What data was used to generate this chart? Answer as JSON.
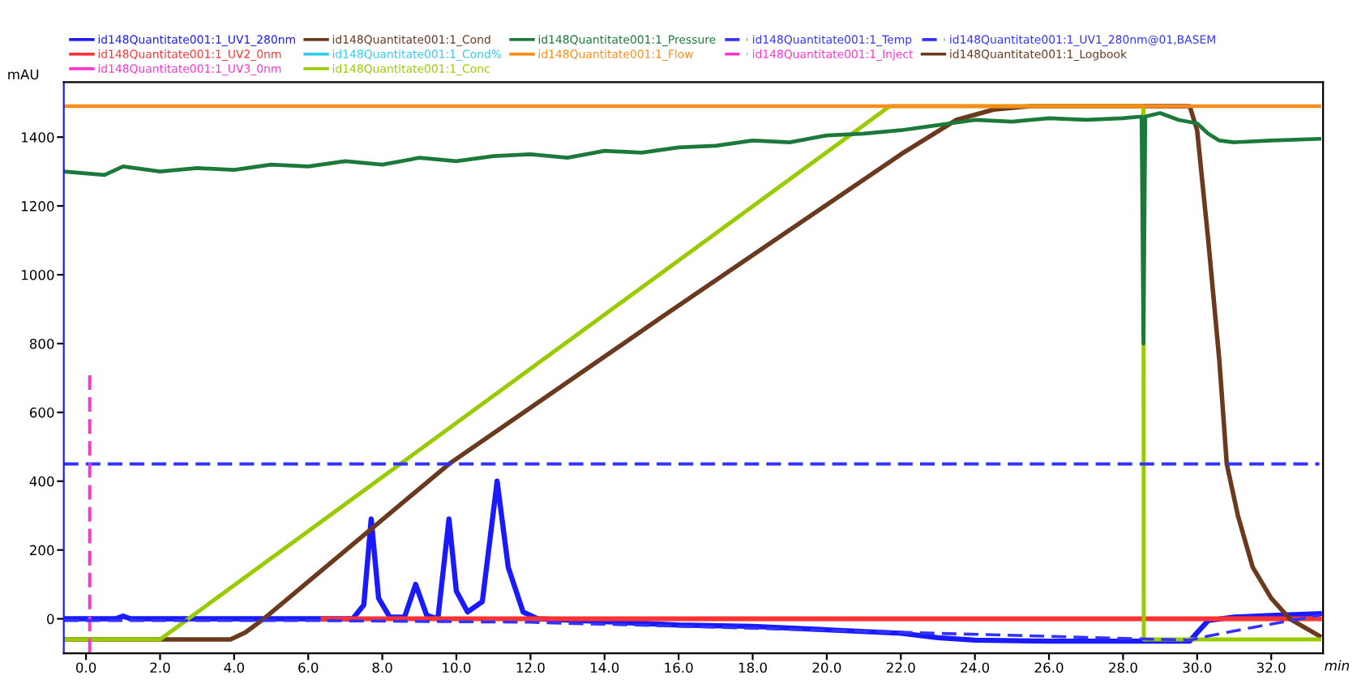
{
  "chart_data": {
    "type": "line",
    "xlabel": "min",
    "ylabel": "mAU",
    "xlim": [
      -0.6,
      33.4
    ],
    "ylim": [
      -100,
      1560
    ],
    "xticks": [
      {
        "value": 0,
        "label": "0.0"
      },
      {
        "value": 2,
        "label": "2.0"
      },
      {
        "value": 4,
        "label": "4.0"
      },
      {
        "value": 6,
        "label": "6.0"
      },
      {
        "value": 8,
        "label": "8.0"
      },
      {
        "value": 10,
        "label": "10.0"
      },
      {
        "value": 12,
        "label": "12.0"
      },
      {
        "value": 14,
        "label": "14.0"
      },
      {
        "value": 16,
        "label": "16.0"
      },
      {
        "value": 18,
        "label": "18.0"
      },
      {
        "value": 20,
        "label": "20.0"
      },
      {
        "value": 22,
        "label": "22.0"
      },
      {
        "value": 24,
        "label": "24.0"
      },
      {
        "value": 26,
        "label": "26.0"
      },
      {
        "value": 28,
        "label": "28.0"
      },
      {
        "value": 30,
        "label": "30.0"
      },
      {
        "value": 32,
        "label": "32.0"
      }
    ],
    "yticks": [
      0,
      200,
      400,
      600,
      800,
      1000,
      1200,
      1400
    ],
    "grid": false,
    "legend": "top",
    "marker": "none",
    "series": [
      {
        "name": "id148Quantitate001:1_UV1_280nm",
        "color": "#1a1aff",
        "line_style": "solid",
        "x": [
          -0.6,
          0.8,
          1.0,
          1.2,
          7.2,
          7.5,
          7.7,
          7.9,
          8.2,
          8.6,
          8.9,
          9.2,
          9.5,
          9.8,
          10.0,
          10.3,
          10.7,
          11.1,
          11.4,
          11.8,
          12.2,
          14,
          16,
          18,
          20,
          22,
          23,
          24,
          26,
          28,
          29.8,
          30.0,
          30.3,
          31.0,
          32.0,
          33.3
        ],
        "values": [
          0,
          0,
          8,
          0,
          0,
          40,
          290,
          60,
          5,
          5,
          100,
          10,
          0,
          290,
          80,
          20,
          50,
          400,
          150,
          20,
          0,
          -8,
          -18,
          -22,
          -32,
          -42,
          -55,
          -62,
          -65,
          -65,
          -65,
          -40,
          -5,
          5,
          10,
          15
        ]
      },
      {
        "name": "id148Quantitate001:1_UV2_0nm",
        "color": "#ff3333",
        "line_style": "solid",
        "x": [
          6.4,
          33.3
        ],
        "values": [
          0,
          0
        ]
      },
      {
        "name": "id148Quantitate001:1_UV3_0nm",
        "color": "#ff33cc",
        "line_style": "solid"
      },
      {
        "name": "id148Quantitate001:1_Cond",
        "color": "#6b3a1e",
        "line_style": "solid",
        "x": [
          -0.6,
          3.9,
          4.3,
          4.8,
          9.8,
          15.6,
          22.0,
          23.5,
          24.5,
          25.5,
          29.8,
          30.0,
          30.3,
          30.6,
          30.8,
          31.1,
          31.5,
          32.0,
          32.5,
          33.3
        ],
        "values": [
          -60,
          -60,
          -40,
          0,
          450,
          881,
          1350,
          1450,
          1480,
          1490,
          1490,
          1420,
          1100,
          750,
          450,
          300,
          150,
          60,
          0,
          -50
        ]
      },
      {
        "name": "id148Quantitate001:1_Cond%",
        "color": "#33ccee",
        "line_style": "solid"
      },
      {
        "name": "id148Quantitate001:1_Conc",
        "color": "#99cc00",
        "line_style": "solid",
        "x": [
          -0.6,
          2.0,
          21.7,
          28.55,
          28.56,
          33.3
        ],
        "values": [
          -60,
          -60,
          1490,
          1490,
          -60,
          -60
        ]
      },
      {
        "name": "id148Quantitate001:1_Pressure",
        "color": "#1b7a3a",
        "line_style": "solid",
        "x": [
          -0.6,
          0.5,
          1.0,
          2.0,
          3.0,
          4.0,
          5.0,
          6.0,
          7.0,
          8.0,
          9.0,
          10.0,
          11.0,
          12.0,
          13.0,
          14.0,
          15.0,
          16.0,
          17.0,
          18.0,
          19.0,
          20.0,
          21.0,
          22.0,
          23.0,
          24.0,
          25.0,
          26.0,
          27.0,
          28.0,
          28.5,
          28.55,
          28.6,
          29.0,
          29.5,
          30.0,
          30.3,
          30.6,
          31.0,
          32.0,
          33.3
        ],
        "values": [
          1300,
          1290,
          1315,
          1300,
          1310,
          1305,
          1320,
          1315,
          1330,
          1320,
          1340,
          1330,
          1345,
          1350,
          1340,
          1360,
          1355,
          1370,
          1375,
          1390,
          1385,
          1405,
          1410,
          1420,
          1435,
          1450,
          1445,
          1455,
          1450,
          1455,
          1460,
          800,
          1460,
          1470,
          1450,
          1440,
          1410,
          1390,
          1385,
          1390,
          1395
        ]
      },
      {
        "name": "id148Quantitate001:1_Flow",
        "color": "#ff8c1a",
        "line_style": "solid",
        "x": [
          -0.6,
          33.3
        ],
        "values": [
          1490,
          1490
        ]
      },
      {
        "name": "id148Quantitate001:1_Temp",
        "color": "#3333ff",
        "line_style": "dashed",
        "x": [
          -0.6,
          33.3
        ],
        "values": [
          450,
          450
        ]
      },
      {
        "name": "id148Quantitate001:1_Inject",
        "color": "#ff33cc",
        "line_style": "dashed",
        "x": [
          0.1,
          0.1
        ],
        "values": [
          -100,
          720
        ]
      },
      {
        "name": "id148Quantitate001:1_UV1_280nm@01,BASEM",
        "color": "#3333ff",
        "line_style": "dashed",
        "x": [
          -0.6,
          6.0,
          12.0,
          29.8,
          30.3,
          31.5,
          33.3
        ],
        "values": [
          -5,
          -5,
          -10,
          -62,
          -50,
          -25,
          10
        ]
      },
      {
        "name": "id148Quantitate001:1_Logbook",
        "color": "#6b3a1e",
        "line_style": "solid"
      }
    ]
  }
}
